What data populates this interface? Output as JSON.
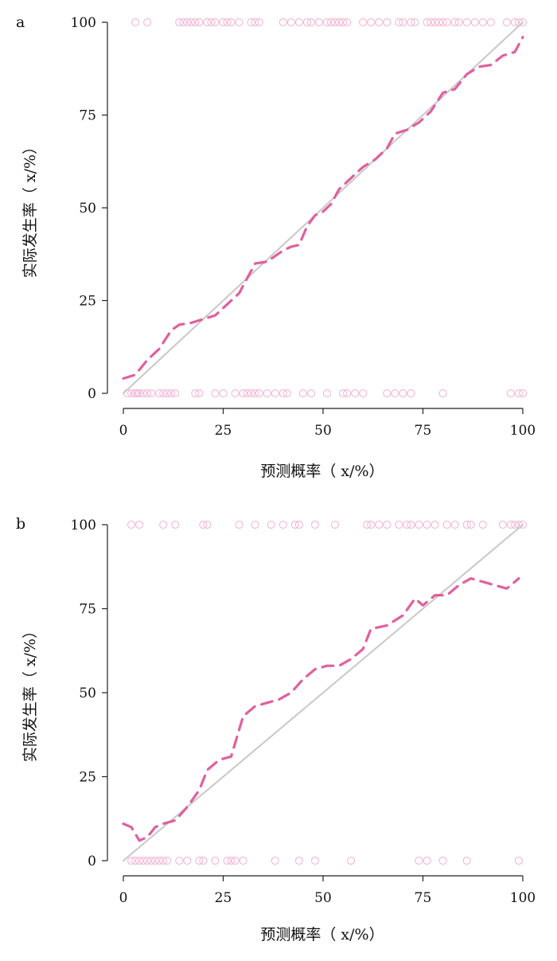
{
  "chart_data": [
    {
      "panel": "a",
      "type": "line",
      "xlabel": "预测概率（ x/%）",
      "ylabel": "实际发生率（ x/%）",
      "xlim": [
        0,
        100
      ],
      "ylim": [
        0,
        100
      ],
      "xticks": [
        0,
        25,
        50,
        75,
        100
      ],
      "yticks": [
        0,
        25,
        50,
        75,
        100
      ],
      "series": [
        {
          "style": "solid",
          "color": "#c8c8c8",
          "x": [
            0,
            100
          ],
          "y": [
            0,
            100
          ]
        },
        {
          "style": "dashed",
          "color": "#e0609e",
          "x": [
            0,
            3,
            6,
            9,
            12,
            14,
            17,
            20,
            23,
            26,
            29,
            31,
            33,
            36,
            38,
            40,
            42,
            44,
            46,
            48,
            50,
            52,
            54,
            57,
            60,
            63,
            66,
            68,
            71,
            74,
            77,
            80,
            83,
            86,
            89,
            92,
            95,
            98,
            100
          ],
          "y": [
            4,
            5,
            9,
            12,
            17,
            18.5,
            19,
            20,
            21,
            24,
            27,
            31,
            35,
            35.5,
            37,
            38.5,
            39.5,
            40,
            45,
            48,
            49,
            51,
            55,
            58,
            61,
            63,
            66,
            70,
            71,
            73,
            76,
            81,
            82,
            86,
            88,
            88.5,
            91,
            92,
            96
          ]
        }
      ],
      "rug_top_x": [
        3,
        6,
        14,
        15,
        16,
        17,
        18,
        19,
        21,
        22,
        23,
        25,
        26,
        27,
        29,
        32,
        33,
        34,
        40,
        42,
        44,
        46,
        47,
        49,
        51,
        52,
        53,
        54,
        55,
        56,
        60,
        62,
        64,
        66,
        69,
        70,
        72,
        73,
        76,
        77,
        78,
        79,
        80,
        81,
        83,
        84,
        86,
        88,
        90,
        92,
        96,
        98,
        99,
        100
      ],
      "rug_bottom_x": [
        1,
        2,
        3,
        3.5,
        4,
        5,
        6,
        7,
        9,
        10,
        11,
        12,
        13,
        18,
        19,
        23,
        25,
        28,
        30,
        31,
        32,
        33,
        34,
        36,
        38,
        40,
        41,
        45,
        47,
        51,
        55,
        56,
        58,
        60,
        66,
        68,
        70,
        72,
        80,
        97,
        99,
        100
      ]
    },
    {
      "panel": "b",
      "type": "line",
      "xlabel": "预测概率（ x/%）",
      "ylabel": "实际发生率（ x/%）",
      "xlim": [
        0,
        100
      ],
      "ylim": [
        0,
        100
      ],
      "xticks": [
        0,
        25,
        50,
        75,
        100
      ],
      "yticks": [
        0,
        25,
        50,
        75,
        100
      ],
      "series": [
        {
          "style": "solid",
          "color": "#c8c8c8",
          "x": [
            0,
            100
          ],
          "y": [
            0,
            100
          ]
        },
        {
          "style": "dashed",
          "color": "#e0609e",
          "x": [
            0,
            2,
            4,
            6,
            8,
            10,
            13,
            16,
            19,
            21,
            24,
            27,
            30,
            33,
            36,
            39,
            42,
            45,
            48,
            51,
            54,
            57,
            60,
            62,
            66,
            70,
            73,
            75,
            78,
            81,
            84,
            87,
            90,
            93,
            96,
            99
          ],
          "y": [
            11,
            10,
            6,
            7,
            10,
            11,
            12,
            16,
            21,
            27,
            30,
            31,
            43,
            46,
            47,
            48,
            50,
            54,
            57,
            58,
            58,
            60,
            63,
            69,
            70,
            73,
            78,
            76,
            79,
            79,
            82,
            84,
            83,
            82,
            81,
            84
          ]
        }
      ],
      "rug_top_x": [
        2,
        4,
        10,
        13,
        20,
        21,
        29,
        33,
        37,
        40,
        43,
        44,
        48,
        53,
        61,
        62,
        64,
        66,
        69,
        71,
        72,
        74,
        76,
        78,
        81,
        83,
        86,
        87,
        90,
        95,
        97,
        98,
        99,
        100
      ],
      "rug_bottom_x": [
        2,
        3,
        4,
        5,
        6,
        7,
        8,
        9,
        10,
        11,
        14,
        16,
        19,
        20,
        23,
        26,
        27,
        28,
        30,
        38,
        44,
        48,
        57,
        74,
        76,
        80,
        86,
        99
      ]
    }
  ]
}
